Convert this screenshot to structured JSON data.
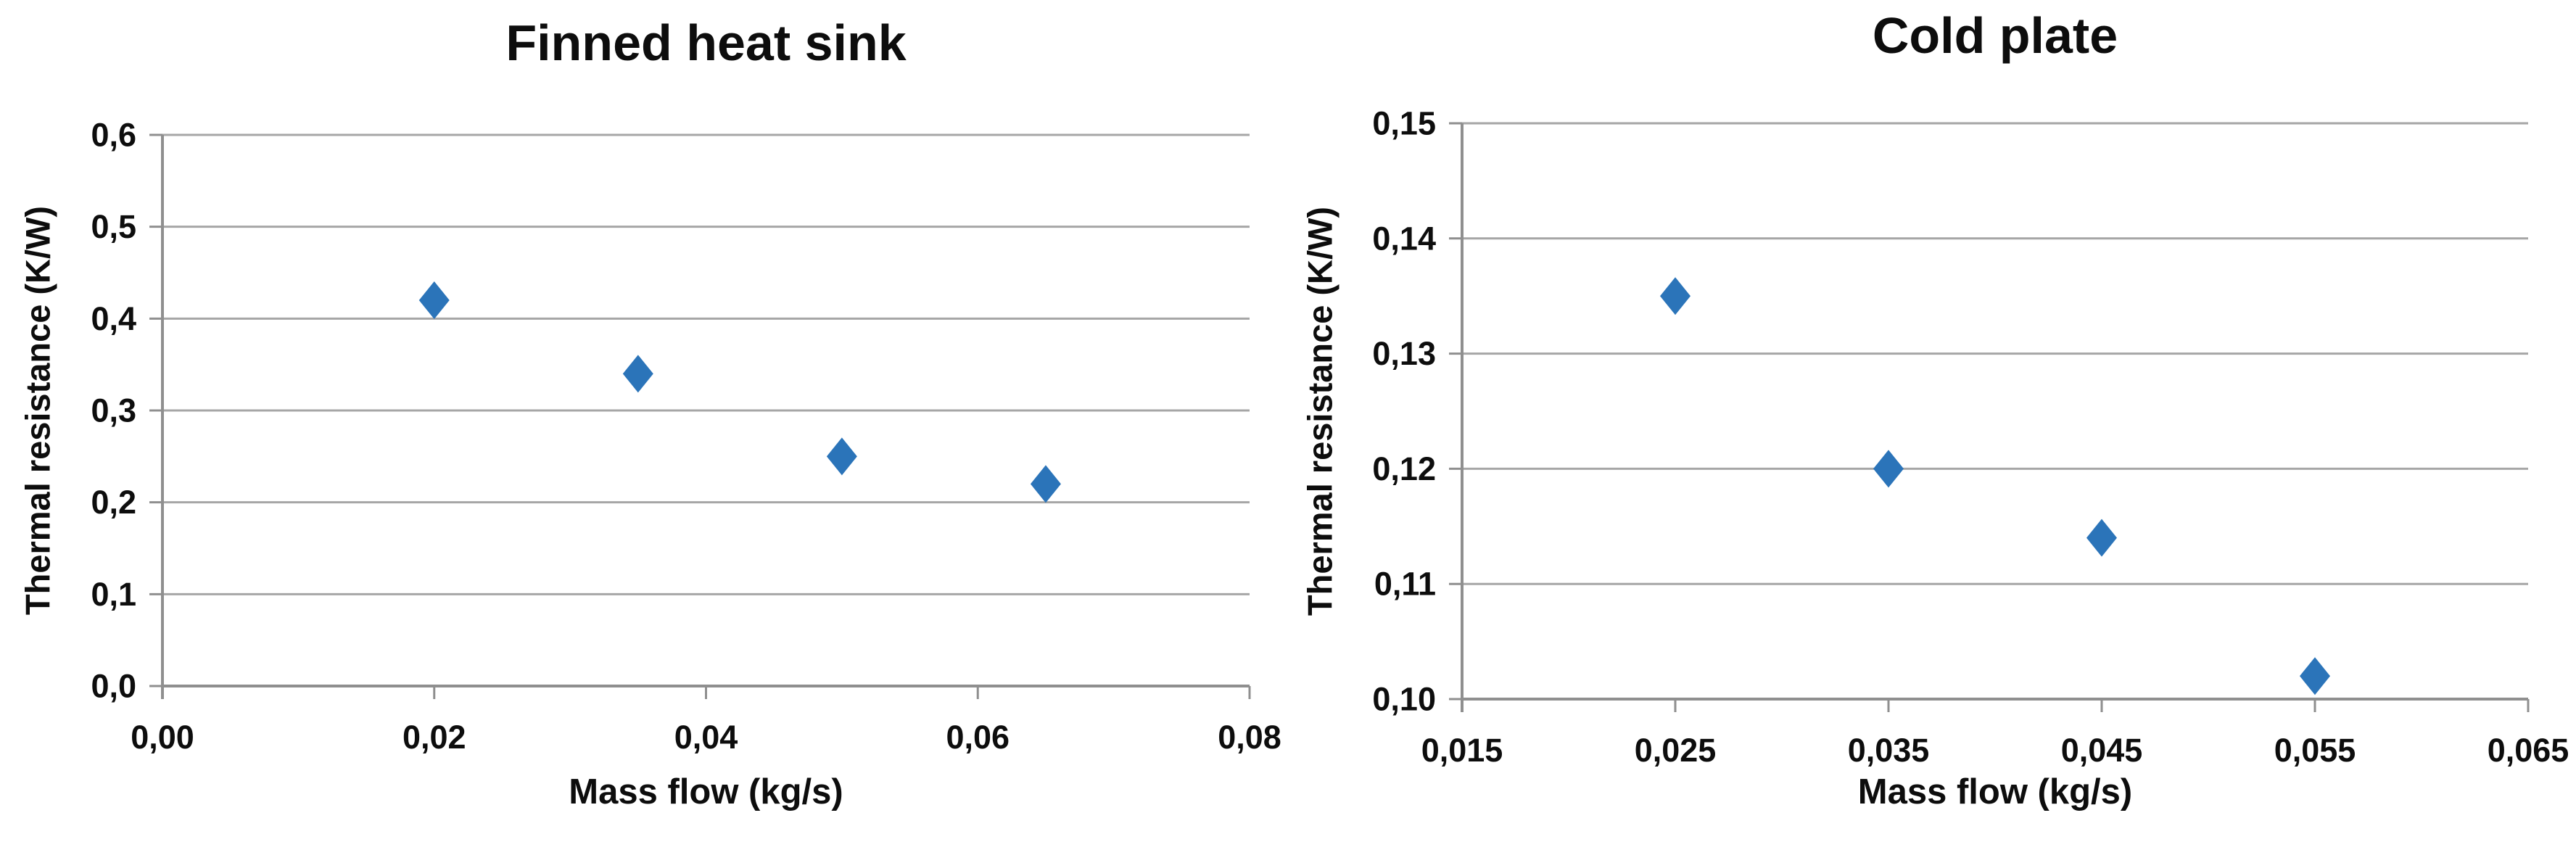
{
  "page": {
    "background": "#ffffff"
  },
  "chart_data": [
    {
      "type": "scatter",
      "title": "Finned heat sink",
      "xlabel": "Mass flow (kg/s)",
      "ylabel": "Thermal resistance (K/W)",
      "xlim": [
        0.0,
        0.08
      ],
      "ylim": [
        0.0,
        0.6
      ],
      "grid": "horizontal",
      "legend": "none",
      "decimal_style": "comma",
      "x_ticks": [
        {
          "value": 0.0,
          "label": "0,00"
        },
        {
          "value": 0.02,
          "label": "0,02"
        },
        {
          "value": 0.04,
          "label": "0,04"
        },
        {
          "value": 0.06,
          "label": "0,06"
        },
        {
          "value": 0.08,
          "label": "0,08"
        }
      ],
      "y_ticks": [
        {
          "value": 0.6,
          "label": "0,6"
        },
        {
          "value": 0.5,
          "label": "0,5"
        },
        {
          "value": 0.4,
          "label": "0,4"
        },
        {
          "value": 0.3,
          "label": "0,3"
        },
        {
          "value": 0.2,
          "label": "0,2"
        },
        {
          "value": 0.1,
          "label": "0,1"
        },
        {
          "value": 0.0,
          "label": "0,0"
        }
      ],
      "points": [
        {
          "x": 0.02,
          "y": 0.42
        },
        {
          "x": 0.035,
          "y": 0.34
        },
        {
          "x": 0.05,
          "y": 0.25
        },
        {
          "x": 0.065,
          "y": 0.22
        }
      ],
      "marker": {
        "shape": "diamond",
        "color": "#2b74b9"
      },
      "colors": {
        "gridline": "#a6a6a6",
        "axis": "#8f8f8f",
        "text": "#0d0d0d"
      }
    },
    {
      "type": "scatter",
      "title": "Cold plate",
      "xlabel": "Mass flow (kg/s)",
      "ylabel": "Thermal resistance (K/W)",
      "xlim": [
        0.015,
        0.065
      ],
      "ylim": [
        0.1,
        0.15
      ],
      "grid": "horizontal",
      "legend": "none",
      "decimal_style": "comma",
      "x_ticks": [
        {
          "value": 0.015,
          "label": "0,015"
        },
        {
          "value": 0.025,
          "label": "0,025"
        },
        {
          "value": 0.035,
          "label": "0,035"
        },
        {
          "value": 0.045,
          "label": "0,045"
        },
        {
          "value": 0.055,
          "label": "0,055"
        },
        {
          "value": 0.065,
          "label": "0,065"
        }
      ],
      "y_ticks": [
        {
          "value": 0.15,
          "label": "0,15"
        },
        {
          "value": 0.14,
          "label": "0,14"
        },
        {
          "value": 0.13,
          "label": "0,13"
        },
        {
          "value": 0.12,
          "label": "0,12"
        },
        {
          "value": 0.11,
          "label": "0,11"
        },
        {
          "value": 0.1,
          "label": "0,10"
        }
      ],
      "points": [
        {
          "x": 0.025,
          "y": 0.135
        },
        {
          "x": 0.035,
          "y": 0.12
        },
        {
          "x": 0.045,
          "y": 0.114
        },
        {
          "x": 0.055,
          "y": 0.102
        }
      ],
      "marker": {
        "shape": "diamond",
        "color": "#2b74b9"
      },
      "colors": {
        "gridline": "#a6a6a6",
        "axis": "#8f8f8f",
        "text": "#0d0d0d"
      }
    }
  ]
}
